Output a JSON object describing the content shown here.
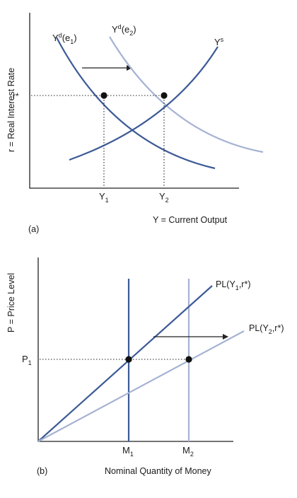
{
  "colors": {
    "dark_curve": "#3c5a96",
    "light_curve": "#a6b3d4",
    "axis": "#222222",
    "text": "#1a1a1a"
  },
  "panel_a": {
    "ylabel": "r = Real Interest Rate",
    "xlabel": "Y = Current Output",
    "panel_label": "(a)",
    "r_star": "r*",
    "y1": {
      "base": "Y",
      "sub": "1"
    },
    "y2": {
      "base": "Y",
      "sub": "2"
    },
    "yd_e1": {
      "base": "Y",
      "sup": "d",
      "arg_open": "(e",
      "arg_sub": "1",
      "arg_close": ")"
    },
    "yd_e2": {
      "base": "Y",
      "sup": "d",
      "arg_open": "(e",
      "arg_sub": "2",
      "arg_close": ")"
    },
    "ys": {
      "base": "Y",
      "sup": "s"
    }
  },
  "panel_b": {
    "ylabel": "P = Price Level",
    "xlabel": "Nominal Quantity of Money",
    "panel_label": "(b)",
    "p1": {
      "base": "P",
      "sub": "1"
    },
    "m1": {
      "base": "M",
      "sub": "1"
    },
    "m2": {
      "base": "M",
      "sub": "2"
    },
    "pl1": {
      "open": "PL(Y",
      "sub": "1",
      "rest": ",r*)"
    },
    "pl2": {
      "open": "PL(Y",
      "sub": "2",
      "rest": ",r*)"
    }
  }
}
